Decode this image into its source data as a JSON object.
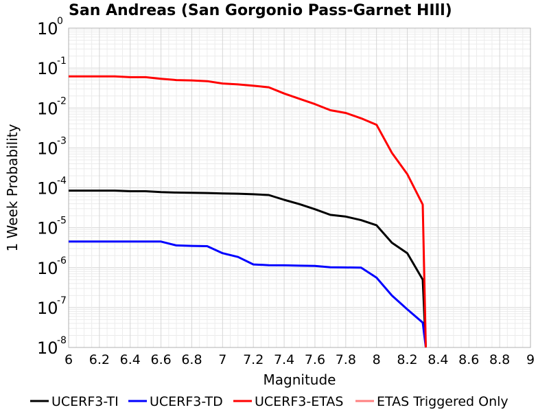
{
  "chart_data": {
    "type": "line",
    "title": "San Andreas (San Gorgonio Pass-Garnet HIll)",
    "xlabel": "Magnitude",
    "ylabel": "1 Week Probability",
    "xlim": [
      6,
      9
    ],
    "ylim": [
      1e-08,
      1
    ],
    "yscale": "log",
    "x_ticks": [
      "6",
      "6.2",
      "6.4",
      "6.6",
      "6.8",
      "7",
      "7.2",
      "7.4",
      "7.6",
      "7.8",
      "8",
      "8.2",
      "8.4",
      "8.6",
      "8.8",
      "9"
    ],
    "y_ticks": [
      {
        "base": "10",
        "exp": "0"
      },
      {
        "base": "10",
        "exp": "-1"
      },
      {
        "base": "10",
        "exp": "-2"
      },
      {
        "base": "10",
        "exp": "-3"
      },
      {
        "base": "10",
        "exp": "-4"
      },
      {
        "base": "10",
        "exp": "-5"
      },
      {
        "base": "10",
        "exp": "-6"
      },
      {
        "base": "10",
        "exp": "-7"
      },
      {
        "base": "10",
        "exp": "-8"
      }
    ],
    "grid": true,
    "legend_position": "bottom",
    "series": [
      {
        "name": "UCERF3-TI",
        "color": "#000000",
        "x": [
          6.0,
          6.1,
          6.2,
          6.3,
          6.4,
          6.5,
          6.6,
          6.7,
          6.8,
          6.9,
          7.0,
          7.1,
          7.2,
          7.3,
          7.4,
          7.5,
          7.6,
          7.7,
          7.8,
          7.9,
          8.0,
          8.1,
          8.2,
          8.3,
          8.32
        ],
        "y": [
          8.5e-05,
          8.5e-05,
          8.5e-05,
          8.5e-05,
          8.2e-05,
          8.2e-05,
          7.8e-05,
          7.6e-05,
          7.5e-05,
          7.4e-05,
          7.2e-05,
          7.1e-05,
          6.9e-05,
          6.6e-05,
          5e-05,
          3.9e-05,
          2.9e-05,
          2.1e-05,
          1.9e-05,
          1.55e-05,
          1.15e-05,
          4.2e-06,
          2.3e-06,
          5e-07,
          1e-08
        ]
      },
      {
        "name": "UCERF3-TD",
        "color": "#0000ff",
        "x": [
          6.0,
          6.1,
          6.2,
          6.3,
          6.4,
          6.5,
          6.6,
          6.7,
          6.8,
          6.9,
          7.0,
          7.1,
          7.2,
          7.3,
          7.4,
          7.5,
          7.6,
          7.7,
          7.8,
          7.9,
          8.0,
          8.1,
          8.2,
          8.3,
          8.32
        ],
        "y": [
          4.5e-06,
          4.5e-06,
          4.5e-06,
          4.5e-06,
          4.5e-06,
          4.5e-06,
          4.5e-06,
          3.6e-06,
          3.5e-06,
          3.45e-06,
          2.3e-06,
          1.85e-06,
          1.2e-06,
          1.15e-06,
          1.14e-06,
          1.12e-06,
          1.1e-06,
          1.02e-06,
          1.01e-06,
          1e-06,
          5.6e-07,
          2e-07,
          9e-08,
          4.2e-08,
          1e-08
        ]
      },
      {
        "name": "UCERF3-ETAS",
        "color": "#ff0000",
        "x": [
          6.0,
          6.1,
          6.2,
          6.3,
          6.4,
          6.5,
          6.6,
          6.7,
          6.8,
          6.9,
          7.0,
          7.1,
          7.2,
          7.3,
          7.4,
          7.5,
          7.6,
          7.7,
          7.8,
          7.9,
          8.0,
          8.1,
          8.2,
          8.3,
          8.32
        ],
        "y": [
          0.062,
          0.062,
          0.062,
          0.062,
          0.059,
          0.059,
          0.054,
          0.05,
          0.049,
          0.047,
          0.041,
          0.039,
          0.036,
          0.033,
          0.023,
          0.017,
          0.0125,
          0.0088,
          0.0075,
          0.0055,
          0.0038,
          0.00075,
          0.00022,
          3.8e-05,
          1e-08
        ]
      },
      {
        "name": "ETAS Triggered Only",
        "color": "#ff8080",
        "x": [],
        "y": []
      }
    ]
  }
}
